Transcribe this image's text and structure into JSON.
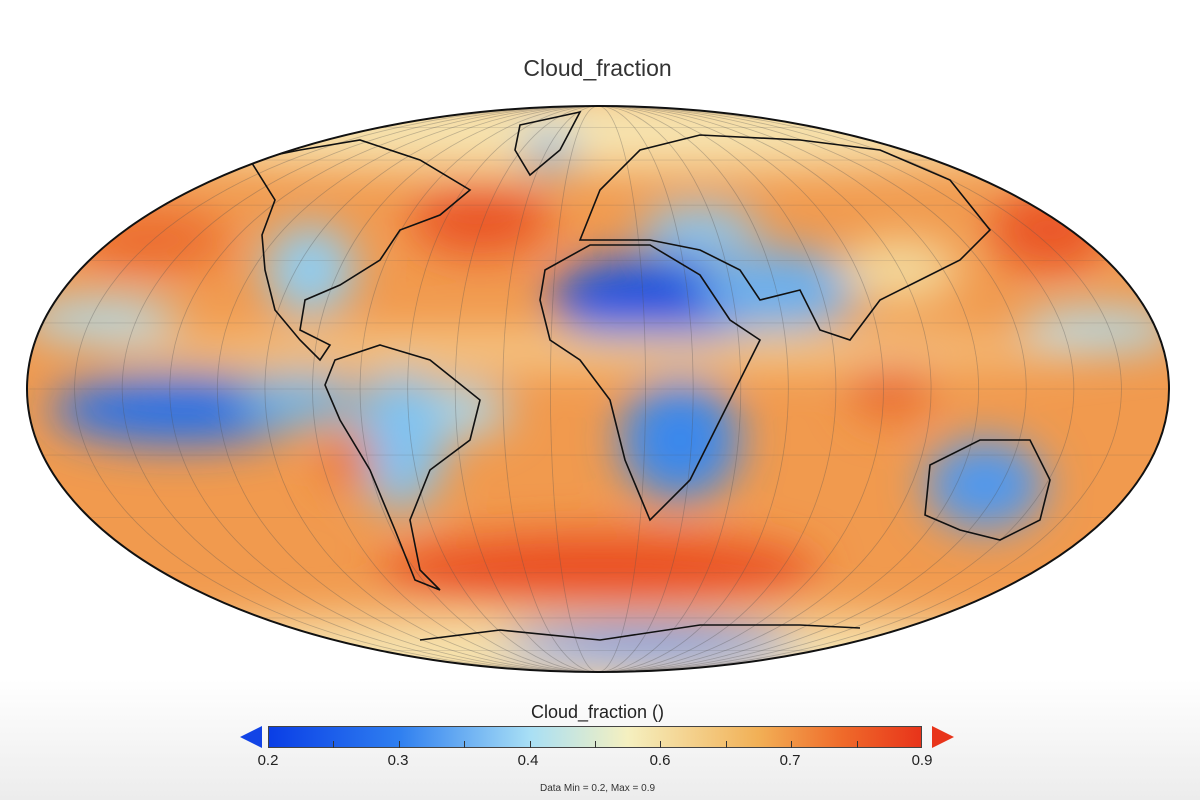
{
  "title": "Cloud_fraction",
  "projection": "mollweide",
  "colorbar": {
    "title": "Cloud_fraction ()",
    "tick_labels": [
      "0.2",
      "0.3",
      "0.4",
      "0.6",
      "0.7",
      "0.9"
    ],
    "min": 0.2,
    "max": 0.9,
    "extend": "both",
    "colors": {
      "low": "#0a3ee6",
      "mid": "#f5f0c0",
      "high": "#e8341a"
    }
  },
  "stats": "Data Min = 0.2, Max = 0.9"
}
